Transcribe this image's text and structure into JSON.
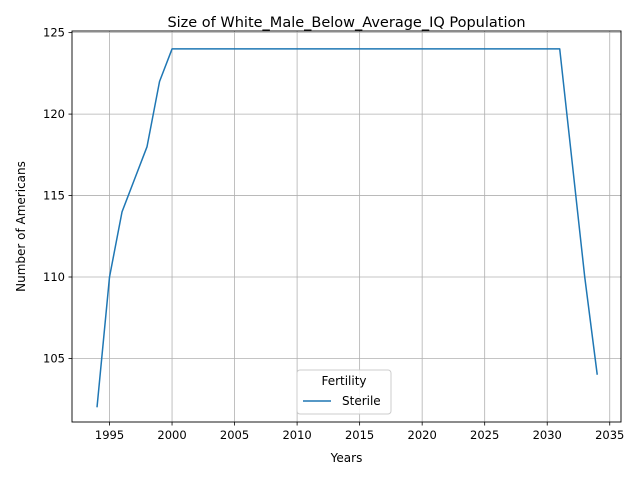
{
  "chart_data": {
    "type": "line",
    "title": "Size of White_Male_Below_Average_IQ Population",
    "xlabel": "Years",
    "ylabel": "Number of Americans",
    "xlim": [
      1992.0,
      2035.9
    ],
    "ylim": [
      101.1,
      125.1
    ],
    "xticks": [
      1995,
      2000,
      2005,
      2010,
      2015,
      2020,
      2025,
      2030,
      2035
    ],
    "yticks": [
      105,
      110,
      115,
      120,
      125
    ],
    "grid": true,
    "legend": {
      "title": "Fertility",
      "position": "bottom-center"
    },
    "series": [
      {
        "name": "Sterile",
        "color": "#1f77b4",
        "x": [
          1994,
          1995,
          1996,
          1997,
          1998,
          1999,
          2000,
          2001,
          2005,
          2010,
          2015,
          2020,
          2025,
          2030,
          2031,
          2032,
          2033,
          2034
        ],
        "y": [
          102,
          110,
          114,
          116,
          118,
          122,
          124,
          124,
          124,
          124,
          124,
          124,
          124,
          124,
          124,
          117,
          110,
          104
        ]
      }
    ]
  }
}
